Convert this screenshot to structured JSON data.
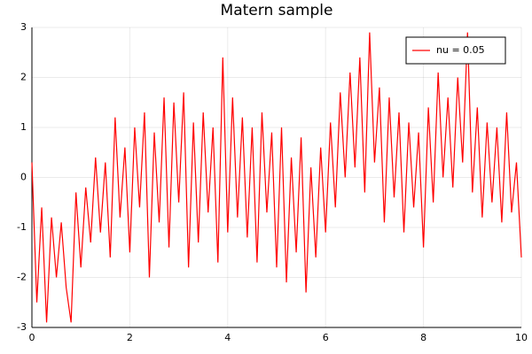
{
  "chart_data": {
    "type": "line",
    "title": "Matern sample",
    "x": [
      0,
      0.1,
      0.2,
      0.3,
      0.4,
      0.5,
      0.6,
      0.7,
      0.8,
      0.9,
      1,
      1.1,
      1.2,
      1.3,
      1.4,
      1.5,
      1.6,
      1.7,
      1.8,
      1.9,
      2,
      2.1,
      2.2,
      2.3,
      2.4,
      2.5,
      2.6,
      2.7,
      2.8,
      2.9,
      3,
      3.1,
      3.2,
      3.3,
      3.4,
      3.5,
      3.6,
      3.7,
      3.8,
      3.9,
      4,
      4.1,
      4.2,
      4.3,
      4.4,
      4.5,
      4.6,
      4.7,
      4.8,
      4.9,
      5,
      5.1,
      5.2,
      5.3,
      5.4,
      5.5,
      5.6,
      5.7,
      5.8,
      5.9,
      6,
      6.1,
      6.2,
      6.3,
      6.4,
      6.5,
      6.6,
      6.7,
      6.8,
      6.9,
      7,
      7.1,
      7.2,
      7.3,
      7.4,
      7.5,
      7.6,
      7.7,
      7.8,
      7.9,
      8,
      8.1,
      8.2,
      8.3,
      8.4,
      8.5,
      8.6,
      8.7,
      8.8,
      8.9,
      9,
      9.1,
      9.2,
      9.3,
      9.4,
      9.5,
      9.6,
      9.7,
      9.8,
      9.9,
      10
    ],
    "series": [
      {
        "name": "nu = 0.05",
        "color": "#ff0000",
        "values": [
          0.3,
          -2.5,
          -0.6,
          -2.9,
          -0.8,
          -2.0,
          -0.9,
          -2.2,
          -2.9,
          -0.3,
          -1.8,
          -0.2,
          -1.3,
          0.4,
          -1.1,
          0.3,
          -1.6,
          1.2,
          -0.8,
          0.6,
          -1.5,
          1.0,
          -0.6,
          1.3,
          -2.0,
          0.9,
          -0.9,
          1.6,
          -1.4,
          1.5,
          -0.5,
          1.7,
          -1.8,
          1.1,
          -1.3,
          1.3,
          -0.7,
          1.0,
          -1.7,
          2.4,
          -1.1,
          1.6,
          -0.8,
          1.2,
          -1.2,
          1.0,
          -1.7,
          1.3,
          -0.7,
          0.9,
          -1.8,
          1.0,
          -2.1,
          0.4,
          -1.5,
          0.8,
          -2.3,
          0.2,
          -1.6,
          0.6,
          -1.1,
          1.1,
          -0.6,
          1.7,
          0.0,
          2.1,
          0.2,
          2.4,
          -0.3,
          2.9,
          0.3,
          1.8,
          -0.9,
          1.6,
          -0.4,
          1.3,
          -1.1,
          1.1,
          -0.6,
          0.9,
          -1.4,
          1.4,
          -0.5,
          2.1,
          0.0,
          1.6,
          -0.2,
          2.0,
          0.3,
          2.9,
          -0.3,
          1.4,
          -0.8,
          1.1,
          -0.5,
          1.0,
          -0.9,
          1.3,
          -0.7,
          0.3,
          -1.6
        ]
      }
    ],
    "xlim": [
      0,
      10
    ],
    "xticks": [
      0,
      2,
      4,
      6,
      8,
      10
    ],
    "ylim": [
      -3,
      3
    ],
    "yticks": [
      -3,
      -2,
      -1,
      0,
      1,
      2,
      3
    ],
    "grid": true,
    "legend": "top right"
  }
}
